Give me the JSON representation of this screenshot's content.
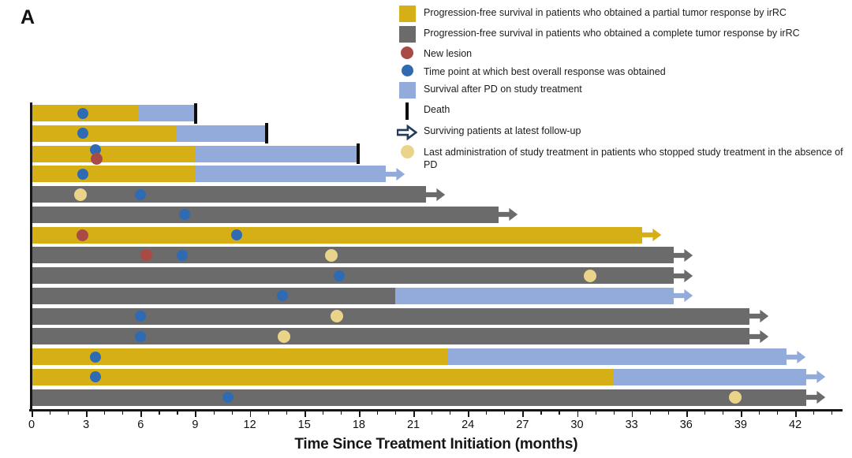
{
  "panel_label": "A",
  "colors": {
    "partial": "#D6AF17",
    "complete": "#6B6B6B",
    "post_pd": "#93ABDB",
    "new_lesion": "#A84B46",
    "best_response": "#2E6BB2",
    "last_admin": "#EAD48A",
    "death": "#0d0d0d",
    "arrow_outline": "#1F3C5E",
    "axis": "#151515"
  },
  "legend": {
    "items": [
      {
        "marker": "partial",
        "label": "Progression-free survival in patients who obtained a  partial tumor response by irRC"
      },
      {
        "marker": "complete",
        "label": "Progression-free survival in patients who obtained a  complete tumor response by irRC"
      },
      {
        "marker": "new_lesion",
        "label": "New lesion"
      },
      {
        "marker": "best_response",
        "label": "Time point at which best overall response was obtained"
      },
      {
        "marker": "post_pd",
        "label": "Survival after PD on study treatment"
      },
      {
        "marker": "death",
        "label": "Death"
      },
      {
        "marker": "survivor",
        "label": "Surviving patients at latest follow-up"
      },
      {
        "marker": "last_admin",
        "label": "Last administration of study treatment in patients  who stopped study treatment in the absence of PD"
      }
    ]
  },
  "chart_data": {
    "type": "swimmer-bar",
    "title": "",
    "xlabel": "Time Since Treatment Initiation (months)",
    "xlim": [
      0,
      44.5
    ],
    "x_major_ticks": [
      0,
      3,
      6,
      9,
      12,
      15,
      18,
      21,
      24,
      27,
      30,
      33,
      36,
      39,
      42
    ],
    "x_minor_step": 1,
    "legend_position": "top-right",
    "patients": [
      {
        "segments": [
          {
            "kind": "partial",
            "from": 0,
            "to": 5.9
          },
          {
            "kind": "post_pd",
            "from": 5.9,
            "to": 9.0
          }
        ],
        "markers": [
          {
            "type": "best_response",
            "t": 2.8
          }
        ],
        "end": {
          "type": "death",
          "t": 9.0
        }
      },
      {
        "segments": [
          {
            "kind": "partial",
            "from": 0,
            "to": 8.0
          },
          {
            "kind": "post_pd",
            "from": 8.0,
            "to": 12.9
          }
        ],
        "markers": [
          {
            "type": "best_response",
            "t": 2.8
          }
        ],
        "end": {
          "type": "death",
          "t": 12.9
        }
      },
      {
        "segments": [
          {
            "kind": "partial",
            "from": 0,
            "to": 9.0
          },
          {
            "kind": "post_pd",
            "from": 9.0,
            "to": 17.9
          }
        ],
        "markers": [
          {
            "type": "best_response",
            "t": 3.5,
            "dy": -5
          },
          {
            "type": "new_lesion",
            "t": 3.6,
            "dy": 6
          }
        ],
        "end": {
          "type": "death",
          "t": 17.9
        }
      },
      {
        "segments": [
          {
            "kind": "partial",
            "from": 0,
            "to": 9.0
          },
          {
            "kind": "post_pd",
            "from": 9.0,
            "to": 19.5
          }
        ],
        "markers": [
          {
            "type": "best_response",
            "t": 2.8
          }
        ],
        "end": {
          "type": "survivor"
        }
      },
      {
        "segments": [
          {
            "kind": "complete",
            "from": 0,
            "to": 21.7
          }
        ],
        "markers": [
          {
            "type": "last_admin",
            "t": 2.7
          },
          {
            "type": "best_response",
            "t": 6.0
          }
        ],
        "end": {
          "type": "survivor"
        }
      },
      {
        "segments": [
          {
            "kind": "complete",
            "from": 0,
            "to": 25.7
          }
        ],
        "markers": [
          {
            "type": "best_response",
            "t": 8.4
          }
        ],
        "end": {
          "type": "survivor"
        }
      },
      {
        "segments": [
          {
            "kind": "partial",
            "from": 0,
            "to": 33.6
          }
        ],
        "markers": [
          {
            "type": "new_lesion",
            "t": 2.8
          },
          {
            "type": "best_response",
            "t": 11.3
          }
        ],
        "end": {
          "type": "survivor"
        }
      },
      {
        "segments": [
          {
            "kind": "complete",
            "from": 0,
            "to": 35.3
          }
        ],
        "markers": [
          {
            "type": "new_lesion",
            "t": 6.3
          },
          {
            "type": "best_response",
            "t": 8.3
          },
          {
            "type": "last_admin",
            "t": 16.5
          }
        ],
        "end": {
          "type": "survivor"
        }
      },
      {
        "segments": [
          {
            "kind": "complete",
            "from": 0,
            "to": 35.3
          }
        ],
        "markers": [
          {
            "type": "best_response",
            "t": 16.9
          },
          {
            "type": "last_admin",
            "t": 30.7
          }
        ],
        "end": {
          "type": "survivor"
        }
      },
      {
        "segments": [
          {
            "kind": "complete",
            "from": 0,
            "to": 20.0
          },
          {
            "kind": "post_pd",
            "from": 20.0,
            "to": 35.3
          }
        ],
        "markers": [
          {
            "type": "best_response",
            "t": 13.8
          }
        ],
        "end": {
          "type": "survivor"
        }
      },
      {
        "segments": [
          {
            "kind": "complete",
            "from": 0,
            "to": 39.5
          }
        ],
        "markers": [
          {
            "type": "best_response",
            "t": 6.0
          },
          {
            "type": "last_admin",
            "t": 16.8
          }
        ],
        "end": {
          "type": "survivor"
        }
      },
      {
        "segments": [
          {
            "kind": "complete",
            "from": 0,
            "to": 39.5
          }
        ],
        "markers": [
          {
            "type": "best_response",
            "t": 6.0
          },
          {
            "type": "last_admin",
            "t": 13.9
          }
        ],
        "end": {
          "type": "survivor"
        }
      },
      {
        "segments": [
          {
            "kind": "partial",
            "from": 0,
            "to": 22.9
          },
          {
            "kind": "post_pd",
            "from": 22.9,
            "to": 41.5
          }
        ],
        "markers": [
          {
            "type": "best_response",
            "t": 3.5
          }
        ],
        "end": {
          "type": "survivor"
        }
      },
      {
        "segments": [
          {
            "kind": "partial",
            "from": 0,
            "to": 32.0
          },
          {
            "kind": "post_pd",
            "from": 32.0,
            "to": 42.6
          }
        ],
        "markers": [
          {
            "type": "best_response",
            "t": 3.5
          }
        ],
        "end": {
          "type": "survivor"
        }
      },
      {
        "segments": [
          {
            "kind": "complete",
            "from": 0,
            "to": 42.6
          }
        ],
        "markers": [
          {
            "type": "best_response",
            "t": 10.8
          },
          {
            "type": "last_admin",
            "t": 38.7
          }
        ],
        "end": {
          "type": "survivor"
        }
      }
    ]
  }
}
